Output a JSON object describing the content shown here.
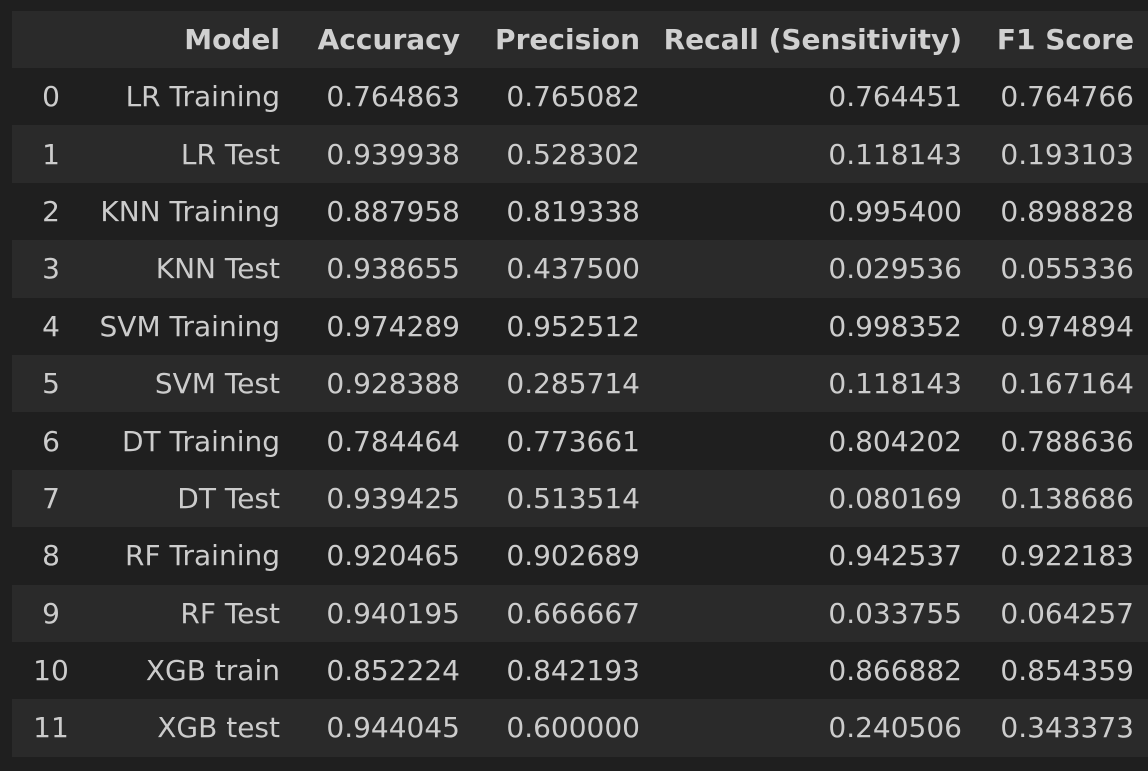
{
  "table": {
    "columns": [
      "",
      "Model",
      "Accuracy",
      "Precision",
      "Recall (Sensitivity)",
      "F1 Score"
    ],
    "rows": [
      [
        "0",
        "LR Training",
        "0.764863",
        "0.765082",
        "0.764451",
        "0.764766"
      ],
      [
        "1",
        "LR Test",
        "0.939938",
        "0.528302",
        "0.118143",
        "0.193103"
      ],
      [
        "2",
        "KNN Training",
        "0.887958",
        "0.819338",
        "0.995400",
        "0.898828"
      ],
      [
        "3",
        "KNN Test",
        "0.938655",
        "0.437500",
        "0.029536",
        "0.055336"
      ],
      [
        "4",
        "SVM Training",
        "0.974289",
        "0.952512",
        "0.998352",
        "0.974894"
      ],
      [
        "5",
        "SVM Test",
        "0.928388",
        "0.285714",
        "0.118143",
        "0.167164"
      ],
      [
        "6",
        "DT Training",
        "0.784464",
        "0.773661",
        "0.804202",
        "0.788636"
      ],
      [
        "7",
        "DT Test",
        "0.939425",
        "0.513514",
        "0.080169",
        "0.138686"
      ],
      [
        "8",
        "RF Training",
        "0.920465",
        "0.902689",
        "0.942537",
        "0.922183"
      ],
      [
        "9",
        "RF Test",
        "0.940195",
        "0.666667",
        "0.033755",
        "0.064257"
      ],
      [
        "10",
        "XGB train",
        "0.852224",
        "0.842193",
        "0.866882",
        "0.854359"
      ],
      [
        "11",
        "XGB test",
        "0.944045",
        "0.600000",
        "0.240506",
        "0.343373"
      ]
    ]
  },
  "colors": {
    "background": "#1f1f1f",
    "stripe": "#2a2a2a",
    "text": "#cccccc"
  }
}
